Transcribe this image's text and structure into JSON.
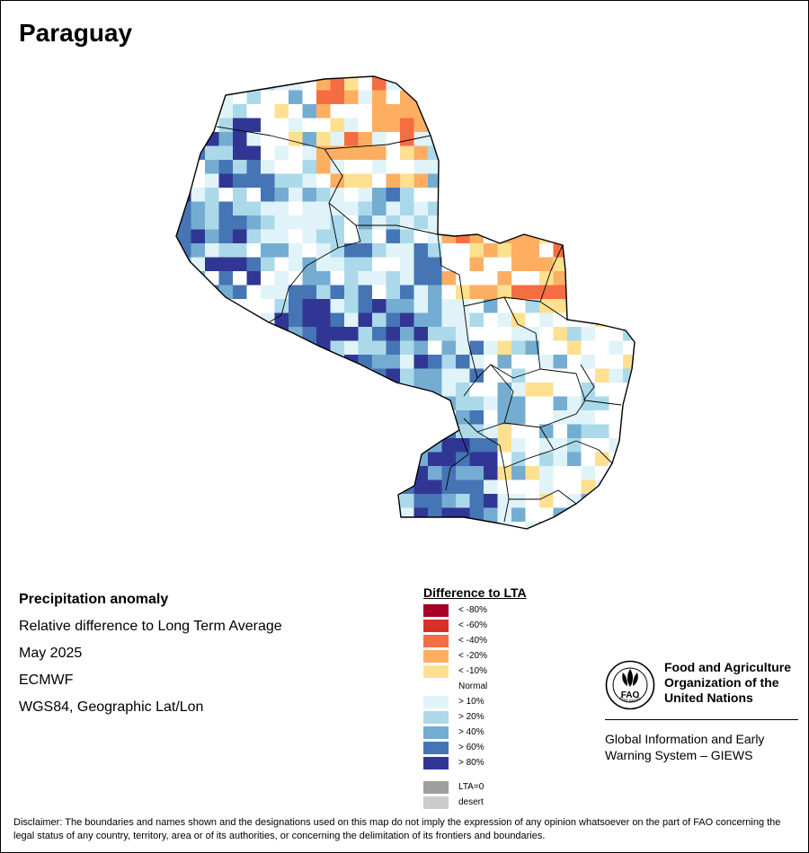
{
  "map": {
    "title": "Paraguay",
    "info_lines": [
      "Precipitation anomaly",
      "Relative difference to Long Term Average",
      "May 2025",
      "ECMWF",
      "WGS84, Geographic Lat/Lon"
    ]
  },
  "legend": {
    "title": "Difference to LTA",
    "items": [
      {
        "label": "< -80%",
        "color": "#a50026"
      },
      {
        "label": "< -60%",
        "color": "#d73027"
      },
      {
        "label": "< -40%",
        "color": "#f46d43"
      },
      {
        "label": "< -20%",
        "color": "#fdae61"
      },
      {
        "label": "< -10%",
        "color": "#fee090"
      },
      {
        "label": "Normal",
        "color": "#ffffff"
      },
      {
        "label": "> 10%",
        "color": "#e0f3f8"
      },
      {
        "label": "> 20%",
        "color": "#abd9e9"
      },
      {
        "label": "> 40%",
        "color": "#74add1"
      },
      {
        "label": "> 60%",
        "color": "#4575b4"
      },
      {
        "label": "> 80%",
        "color": "#313695"
      },
      {
        "label": "LTA=0",
        "color": "#9e9e9e"
      },
      {
        "label": "desert",
        "color": "#cccccc"
      }
    ]
  },
  "logo": {
    "icon": "fao-emblem-icon",
    "letters": "FAO",
    "motto": "FIAT PANIS",
    "org_name_lines": [
      "Food and Agriculture",
      "Organization of the",
      "United Nations"
    ],
    "system_lines": [
      "Global Information and Early",
      "Warning System – GIEWS"
    ]
  },
  "disclaimer": "Disclaimer: The boundaries and names shown and the designations used on this map do not imply the expression of any opinion whatsoever on the part of FAO concerning the legal status of any country, territory, area or of its authorities, or concerning the delimitation of its frontiers and boundaries."
}
